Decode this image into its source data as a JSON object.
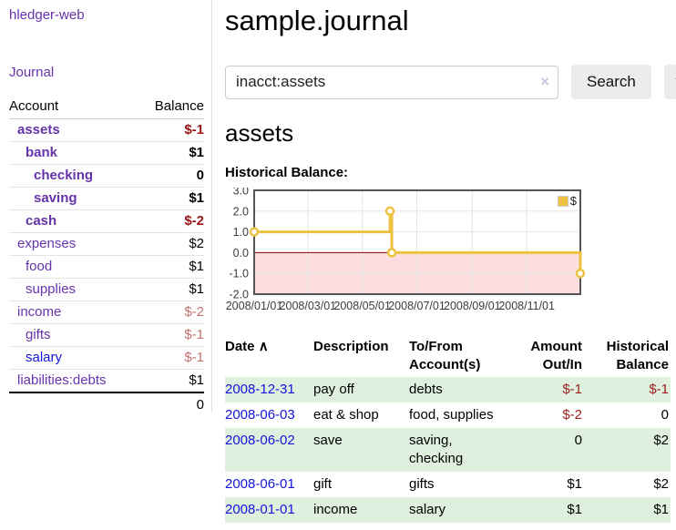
{
  "app": {
    "title": "hledger-web",
    "nav_journal": "Journal"
  },
  "colors": {
    "accent_purple": "#6633aa",
    "link_blue": "#1414dd",
    "negative_strong": "#9b1616",
    "negative_soft": "#c0736f",
    "row_stripe_green": "#dff0df",
    "button_gray": "#ececec"
  },
  "sidebar": {
    "header": {
      "account": "Account",
      "balance": "Balance"
    },
    "accounts": [
      {
        "name": "assets",
        "indent": 1,
        "bold": true,
        "balance": "$-1",
        "link": "purple"
      },
      {
        "name": "bank",
        "indent": 2,
        "bold": true,
        "balance": "$1",
        "link": "purple"
      },
      {
        "name": "checking",
        "indent": 3,
        "bold": true,
        "balance": "0",
        "link": "purple"
      },
      {
        "name": "saving",
        "indent": 3,
        "bold": true,
        "balance": "$1",
        "link": "purple"
      },
      {
        "name": "cash",
        "indent": 2,
        "bold": true,
        "balance": "$-2",
        "link": "purple"
      },
      {
        "name": "expenses",
        "indent": 1,
        "bold": false,
        "balance": "$2",
        "link": "purple"
      },
      {
        "name": "food",
        "indent": 2,
        "bold": false,
        "balance": "$1",
        "link": "purple"
      },
      {
        "name": "supplies",
        "indent": 2,
        "bold": false,
        "balance": "$1",
        "link": "purple"
      },
      {
        "name": "income",
        "indent": 1,
        "bold": false,
        "balance": "$-2",
        "link": "purple"
      },
      {
        "name": "gifts",
        "indent": 2,
        "bold": false,
        "balance": "$-1",
        "link": "purple"
      },
      {
        "name": "salary",
        "indent": 2,
        "bold": false,
        "balance": "$-1",
        "link": "blue"
      },
      {
        "name": "liabilities:debts",
        "indent": 1,
        "bold": false,
        "balance": "$1",
        "link": "purple"
      }
    ],
    "total": "0"
  },
  "main": {
    "title": "sample.journal",
    "search": {
      "value": "inacct:assets",
      "clear_icon": "×",
      "button": "Search",
      "help_button": "?"
    },
    "account_heading": "assets",
    "chart_label": "Historical Balance:"
  },
  "chart_data": {
    "type": "line",
    "title": "Historical Balance:",
    "step": true,
    "series": [
      {
        "name": "$",
        "color": "#edc240",
        "points": [
          [
            "2008-01-01",
            1
          ],
          [
            "2008-06-01",
            2
          ],
          [
            "2008-06-03",
            0
          ],
          [
            "2008-12-31",
            -1
          ]
        ]
      }
    ],
    "xlim": [
      "2008-01-01",
      "2008-12-31"
    ],
    "ylim": [
      -2,
      3
    ],
    "x_ticks": [
      "2008/01/01",
      "2008/03/01",
      "2008/05/01",
      "2008/07/01",
      "2008/09/01",
      "2008/11/01"
    ],
    "y_ticks": [
      3.0,
      2.0,
      1.0,
      0.0,
      -1.0,
      -2.0
    ],
    "grid": true,
    "negative_fill": "#fcdede",
    "zero_line_color": "#8b0000",
    "border_color": "#545454",
    "grid_color": "#e6e6e6",
    "legend": {
      "label": "$",
      "position": "top-right"
    }
  },
  "register": {
    "headers": [
      {
        "label": "Date",
        "align": "left",
        "sort_icon": "∧"
      },
      {
        "label": "Description",
        "align": "left"
      },
      {
        "label": "To/From Account(s)",
        "align": "left"
      },
      {
        "label": "Amount Out/In",
        "align": "right"
      },
      {
        "label": "Historical Balance",
        "align": "right"
      }
    ],
    "rows": [
      {
        "date": "2008-12-31",
        "description": "pay off",
        "accounts": "debts",
        "amount": "$-1",
        "balance": "$-1"
      },
      {
        "date": "2008-06-03",
        "description": "eat & shop",
        "accounts": "food, supplies",
        "amount": "$-2",
        "balance": "0"
      },
      {
        "date": "2008-06-02",
        "description": "save",
        "accounts": "saving, checking",
        "amount": "0",
        "balance": "$2"
      },
      {
        "date": "2008-06-01",
        "description": "gift",
        "accounts": "gifts",
        "amount": "$1",
        "balance": "$2"
      },
      {
        "date": "2008-01-01",
        "description": "income",
        "accounts": "salary",
        "amount": "$1",
        "balance": "$1"
      }
    ]
  }
}
